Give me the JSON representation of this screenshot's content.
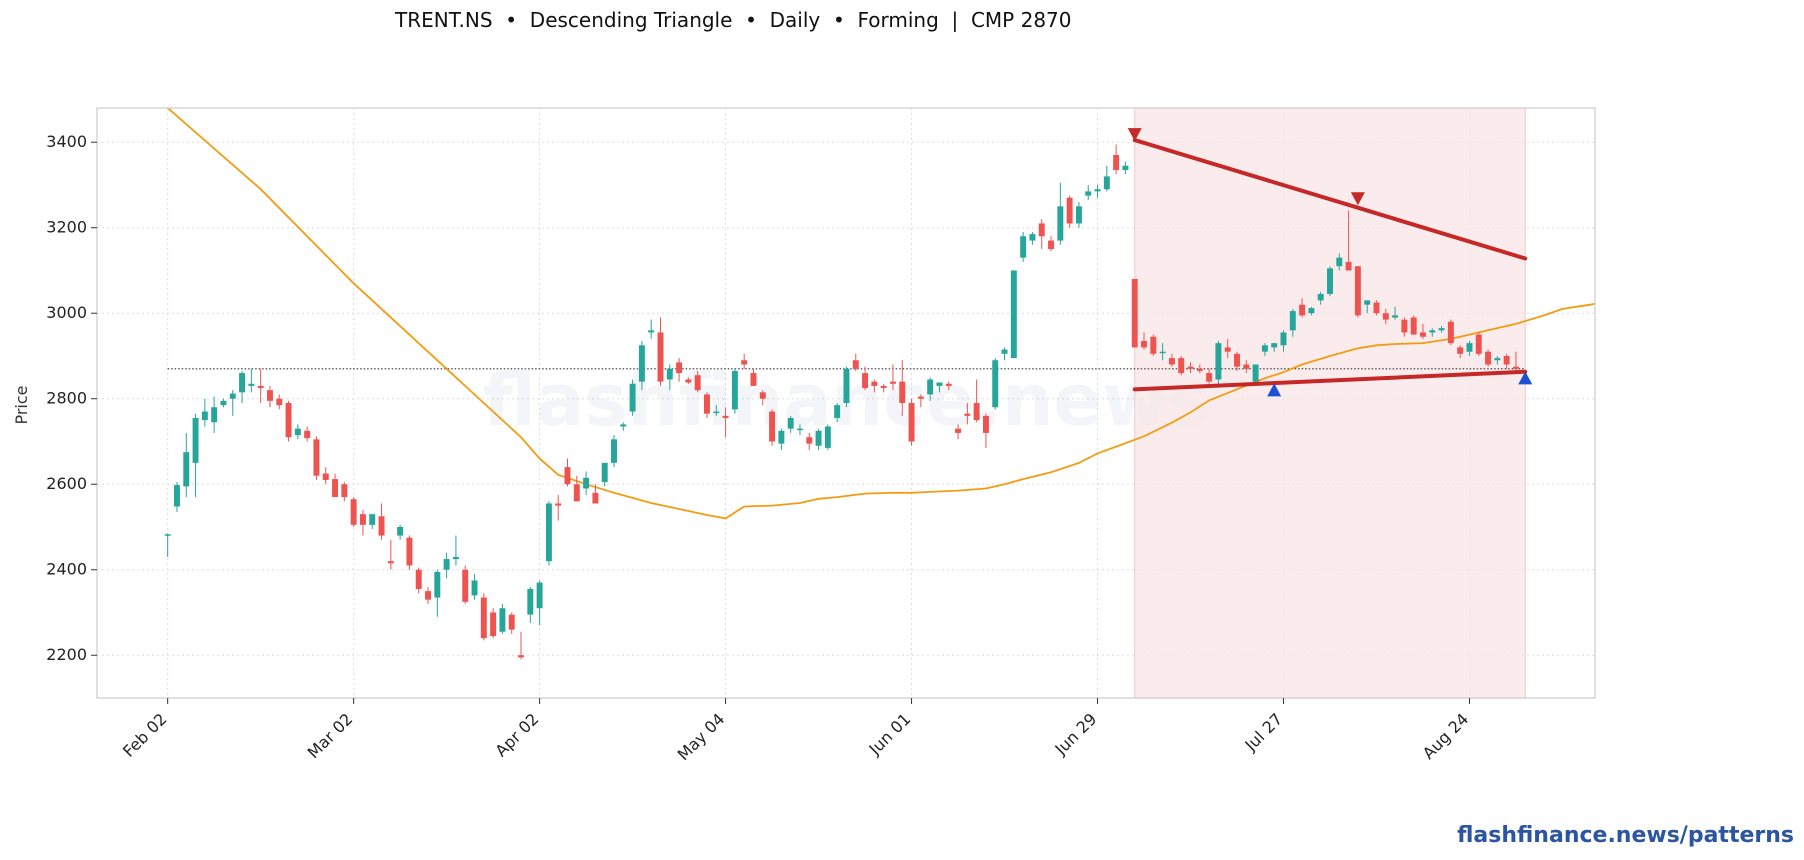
{
  "header": {
    "title": "TRENT.NS  •  Descending Triangle  •  Daily  •  Forming  |  CMP 2870"
  },
  "watermark": "flashfinance.news",
  "footer": {
    "link_text": "flashfinance.news/patterns"
  },
  "colors": {
    "bull": "#26a69a",
    "bear": "#ef5350",
    "ma": "#f39c12",
    "trendline": "#c62828",
    "low_marker": "#1e50d6",
    "highlight": "#f8e6e6",
    "ref_line": "#333333",
    "link": "#2b55a0"
  },
  "chart_data": {
    "type": "candlestick",
    "title": "TRENT.NS  •  Descending Triangle  •  Daily  •  Forming  |  CMP 2870",
    "ylabel": "Price",
    "xlabel": "",
    "ylim": [
      2100,
      3480
    ],
    "yticks": [
      2200,
      2400,
      2600,
      2800,
      3000,
      3200,
      3400
    ],
    "grid": true,
    "xticks": [
      {
        "label": "Feb 02",
        "bar": 0
      },
      {
        "label": "Mar 02",
        "bar": 20
      },
      {
        "label": "Apr 02",
        "bar": 40
      },
      {
        "label": "May 04",
        "bar": 60
      },
      {
        "label": "Jun 01",
        "bar": 80
      },
      {
        "label": "Jun 29",
        "bar": 100
      },
      {
        "label": "Jul 27",
        "bar": 120
      },
      {
        "label": "Aug 24",
        "bar": 140
      }
    ],
    "bar_range": [
      -7.6,
      153.5
    ],
    "current_price": 2870,
    "candles": [
      [
        2482,
        2485,
        2430,
        2483
      ],
      [
        2548,
        2605,
        2535,
        2598
      ],
      [
        2595,
        2720,
        2570,
        2675
      ],
      [
        2650,
        2765,
        2570,
        2755
      ],
      [
        2750,
        2800,
        2735,
        2770
      ],
      [
        2745,
        2805,
        2720,
        2780
      ],
      [
        2785,
        2800,
        2780,
        2795
      ],
      [
        2800,
        2820,
        2760,
        2812
      ],
      [
        2815,
        2865,
        2790,
        2860
      ],
      [
        2830,
        2870,
        2815,
        2835
      ],
      [
        2830,
        2870,
        2790,
        2825
      ],
      [
        2820,
        2830,
        2780,
        2795
      ],
      [
        2800,
        2810,
        2775,
        2785
      ],
      [
        2790,
        2795,
        2700,
        2710
      ],
      [
        2715,
        2740,
        2705,
        2730
      ],
      [
        2725,
        2735,
        2700,
        2708
      ],
      [
        2705,
        2712,
        2610,
        2620
      ],
      [
        2625,
        2640,
        2600,
        2610
      ],
      [
        2612,
        2625,
        2570,
        2570
      ],
      [
        2600,
        2605,
        2560,
        2570
      ],
      [
        2565,
        2570,
        2500,
        2505
      ],
      [
        2530,
        2540,
        2480,
        2505
      ],
      [
        2505,
        2530,
        2495,
        2530
      ],
      [
        2525,
        2555,
        2470,
        2480
      ],
      [
        2420,
        2470,
        2400,
        2415
      ],
      [
        2480,
        2505,
        2470,
        2500
      ],
      [
        2475,
        2480,
        2400,
        2410
      ],
      [
        2400,
        2405,
        2345,
        2355
      ],
      [
        2350,
        2360,
        2320,
        2330
      ],
      [
        2335,
        2400,
        2290,
        2395
      ],
      [
        2400,
        2440,
        2380,
        2425
      ],
      [
        2425,
        2480,
        2410,
        2430
      ],
      [
        2400,
        2410,
        2320,
        2325
      ],
      [
        2340,
        2390,
        2330,
        2375
      ],
      [
        2335,
        2345,
        2235,
        2240
      ],
      [
        2300,
        2310,
        2240,
        2245
      ],
      [
        2255,
        2320,
        2250,
        2310
      ],
      [
        2295,
        2300,
        2250,
        2260
      ],
      [
        2200,
        2255,
        2190,
        2195
      ],
      [
        2295,
        2360,
        2275,
        2355
      ],
      [
        2310,
        2375,
        2270,
        2370
      ],
      [
        2420,
        2560,
        2410,
        2555
      ],
      [
        2555,
        2575,
        2515,
        2550
      ],
      [
        2640,
        2660,
        2595,
        2600
      ],
      [
        2600,
        2620,
        2560,
        2560
      ],
      [
        2590,
        2630,
        2575,
        2615
      ],
      [
        2580,
        2600,
        2555,
        2555
      ],
      [
        2605,
        2650,
        2595,
        2650
      ],
      [
        2650,
        2715,
        2640,
        2705
      ],
      [
        2735,
        2745,
        2725,
        2740
      ],
      [
        2770,
        2845,
        2760,
        2835
      ],
      [
        2840,
        2935,
        2820,
        2925
      ],
      [
        2955,
        2985,
        2940,
        2960
      ],
      [
        2955,
        2990,
        2830,
        2840
      ],
      [
        2845,
        2880,
        2820,
        2870
      ],
      [
        2885,
        2895,
        2840,
        2860
      ],
      [
        2845,
        2850,
        2835,
        2838
      ],
      [
        2855,
        2865,
        2815,
        2820
      ],
      [
        2810,
        2815,
        2755,
        2765
      ],
      [
        2770,
        2785,
        2760,
        2770
      ],
      [
        2760,
        2780,
        2710,
        2755
      ],
      [
        2775,
        2870,
        2765,
        2865
      ],
      [
        2890,
        2905,
        2870,
        2880
      ],
      [
        2860,
        2870,
        2830,
        2830
      ],
      [
        2815,
        2820,
        2785,
        2800
      ],
      [
        2770,
        2775,
        2690,
        2700
      ],
      [
        2695,
        2730,
        2680,
        2725
      ],
      [
        2730,
        2760,
        2720,
        2755
      ],
      [
        2730,
        2740,
        2715,
        2730
      ],
      [
        2710,
        2720,
        2680,
        2695
      ],
      [
        2690,
        2730,
        2680,
        2725
      ],
      [
        2685,
        2740,
        2680,
        2735
      ],
      [
        2755,
        2790,
        2745,
        2785
      ],
      [
        2790,
        2875,
        2780,
        2870
      ],
      [
        2890,
        2905,
        2865,
        2870
      ],
      [
        2860,
        2875,
        2820,
        2825
      ],
      [
        2840,
        2845,
        2815,
        2830
      ],
      [
        2830,
        2835,
        2815,
        2825
      ],
      [
        2840,
        2880,
        2820,
        2835
      ],
      [
        2840,
        2890,
        2760,
        2790
      ],
      [
        2790,
        2800,
        2690,
        2700
      ],
      [
        2805,
        2810,
        2780,
        2800
      ],
      [
        2810,
        2850,
        2795,
        2845
      ],
      [
        2830,
        2835,
        2815,
        2838
      ],
      [
        2835,
        2840,
        2820,
        2830
      ],
      [
        2730,
        2740,
        2705,
        2720
      ],
      [
        2765,
        2790,
        2740,
        2760
      ],
      [
        2790,
        2845,
        2745,
        2750
      ],
      [
        2760,
        2765,
        2685,
        2720
      ],
      [
        2780,
        2895,
        2775,
        2890
      ],
      [
        2905,
        2920,
        2890,
        2915
      ],
      [
        2895,
        3100,
        2900,
        3100
      ],
      [
        3130,
        3190,
        3120,
        3180
      ],
      [
        3170,
        3190,
        3160,
        3185
      ],
      [
        3210,
        3220,
        3150,
        3180
      ],
      [
        3170,
        3180,
        3145,
        3150
      ],
      [
        3170,
        3305,
        3160,
        3250
      ],
      [
        3270,
        3275,
        3200,
        3210
      ],
      [
        3210,
        3260,
        3200,
        3250
      ],
      [
        3275,
        3300,
        3265,
        3285
      ],
      [
        3285,
        3300,
        3270,
        3290
      ],
      [
        3290,
        3345,
        3285,
        3320
      ],
      [
        3370,
        3395,
        3325,
        3335
      ],
      [
        3335,
        3355,
        3325,
        3345
      ],
      [
        3080,
        3080,
        2920,
        2920
      ],
      [
        2935,
        2955,
        2915,
        2920
      ],
      [
        2945,
        2950,
        2900,
        2905
      ],
      [
        2910,
        2930,
        2890,
        2910
      ],
      [
        2895,
        2905,
        2875,
        2880
      ],
      [
        2895,
        2900,
        2855,
        2860
      ],
      [
        2875,
        2885,
        2860,
        2870
      ],
      [
        2870,
        2880,
        2860,
        2865
      ],
      [
        2860,
        2870,
        2835,
        2840
      ],
      [
        2845,
        2935,
        2830,
        2930
      ],
      [
        2920,
        2940,
        2895,
        2910
      ],
      [
        2905,
        2910,
        2865,
        2875
      ],
      [
        2880,
        2890,
        2860,
        2870
      ],
      [
        2840,
        2880,
        2835,
        2880
      ],
      [
        2910,
        2930,
        2900,
        2925
      ],
      [
        2920,
        2930,
        2910,
        2930
      ],
      [
        2925,
        2960,
        2910,
        2955
      ],
      [
        2960,
        3010,
        2945,
        3005
      ],
      [
        3020,
        3035,
        2990,
        2995
      ],
      [
        3000,
        3015,
        2995,
        3012
      ],
      [
        3030,
        3050,
        3020,
        3045
      ],
      [
        3045,
        3110,
        3040,
        3105
      ],
      [
        3110,
        3140,
        3100,
        3130
      ],
      [
        3120,
        3240,
        3100,
        3100
      ],
      [
        3110,
        3110,
        2990,
        2995
      ],
      [
        3020,
        3030,
        3000,
        3030
      ],
      [
        3025,
        3030,
        2995,
        3000
      ],
      [
        3000,
        3010,
        2975,
        2985
      ],
      [
        2990,
        3015,
        2985,
        2995
      ],
      [
        2985,
        2990,
        2945,
        2955
      ],
      [
        2990,
        2995,
        2950,
        2950
      ],
      [
        2955,
        2975,
        2940,
        2945
      ],
      [
        2955,
        2965,
        2945,
        2960
      ],
      [
        2960,
        2970,
        2955,
        2965
      ],
      [
        2980,
        2985,
        2925,
        2930
      ],
      [
        2920,
        2925,
        2895,
        2905
      ],
      [
        2910,
        2935,
        2900,
        2930
      ],
      [
        2950,
        2955,
        2900,
        2905
      ],
      [
        2910,
        2915,
        2875,
        2880
      ],
      [
        2890,
        2900,
        2880,
        2895
      ],
      [
        2900,
        2905,
        2870,
        2880
      ],
      [
        2875,
        2910,
        2865,
        2870
      ]
    ],
    "moving_average": [
      [
        0,
        3480
      ],
      [
        10,
        3290
      ],
      [
        20,
        3070
      ],
      [
        30,
        2870
      ],
      [
        35,
        2770
      ],
      [
        38,
        2710
      ],
      [
        40,
        2660
      ],
      [
        42,
        2622
      ],
      [
        45,
        2600
      ],
      [
        48,
        2580
      ],
      [
        50,
        2568
      ],
      [
        52,
        2556
      ],
      [
        55,
        2542
      ],
      [
        58,
        2528
      ],
      [
        60,
        2520
      ],
      [
        62,
        2548
      ],
      [
        65,
        2550
      ],
      [
        68,
        2556
      ],
      [
        70,
        2566
      ],
      [
        72,
        2570
      ],
      [
        75,
        2578
      ],
      [
        78,
        2580
      ],
      [
        80,
        2580
      ],
      [
        82,
        2582
      ],
      [
        85,
        2585
      ],
      [
        88,
        2590
      ],
      [
        90,
        2600
      ],
      [
        92,
        2612
      ],
      [
        95,
        2628
      ],
      [
        98,
        2650
      ],
      [
        100,
        2672
      ],
      [
        102,
        2688
      ],
      [
        105,
        2712
      ],
      [
        108,
        2744
      ],
      [
        110,
        2768
      ],
      [
        112,
        2796
      ],
      [
        115,
        2822
      ],
      [
        118,
        2848
      ],
      [
        120,
        2862
      ],
      [
        122,
        2880
      ],
      [
        125,
        2900
      ],
      [
        128,
        2918
      ],
      [
        130,
        2925
      ],
      [
        132,
        2928
      ],
      [
        135,
        2930
      ],
      [
        138,
        2940
      ],
      [
        140,
        2950
      ],
      [
        142,
        2960
      ],
      [
        145,
        2975
      ],
      [
        148,
        2995
      ],
      [
        150,
        3010
      ],
      [
        153,
        3020
      ],
      [
        155,
        3030
      ],
      [
        158,
        3032
      ],
      [
        160,
        3028
      ],
      [
        163,
        3010
      ],
      [
        165,
        3002
      ]
    ],
    "reference_line": 2870,
    "pattern": {
      "highlight_start_bar": 104,
      "highlight_end_bar": 146,
      "upper_trendline": [
        [
          104,
          3405
        ],
        [
          146,
          3128
        ]
      ],
      "lower_trendline": [
        [
          104,
          2822
        ],
        [
          146,
          2863
        ]
      ],
      "peaks": [
        [
          104,
          3405
        ],
        [
          128,
          3255
        ]
      ],
      "troughs": [
        [
          119,
          2822
        ],
        [
          146,
          2850
        ]
      ]
    }
  }
}
